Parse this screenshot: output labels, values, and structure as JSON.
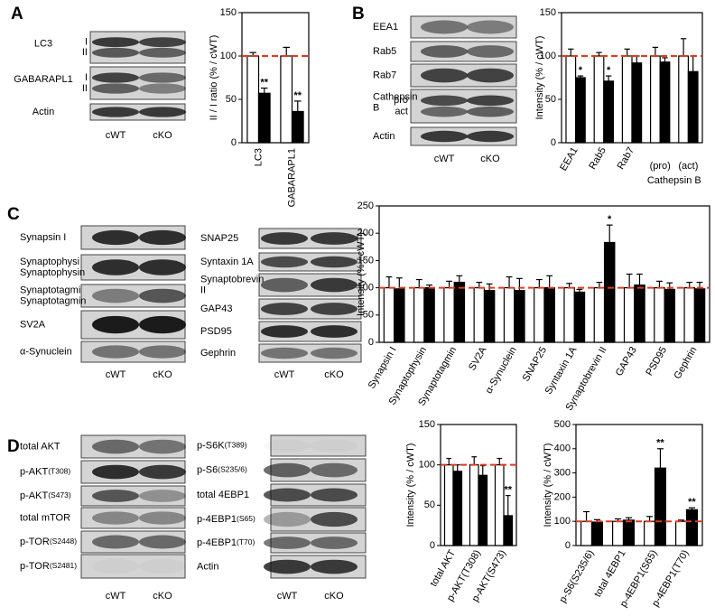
{
  "panel_labels": [
    "A",
    "B",
    "C",
    "D"
  ],
  "blots": [
    {
      "lanes": [
        "cWT",
        "cKO"
      ],
      "rows": [
        {
          "label": "LC3",
          "bands": [
            "I",
            "II"
          ]
        },
        {
          "label": "GABARAPL1",
          "bands": [
            "I",
            "II"
          ]
        },
        {
          "label": "Actin"
        }
      ]
    },
    {
      "lanes": [
        "cWT",
        "cKO"
      ],
      "rows": [
        {
          "label": "EEA1"
        },
        {
          "label": "Rab5"
        },
        {
          "label": "Rab7"
        },
        {
          "label": "Cathepsin B",
          "bands": [
            "pro",
            "act"
          ]
        },
        {
          "label": "Actin"
        }
      ]
    },
    {
      "lanes": [
        "cWT",
        "cKO"
      ],
      "rows": [
        {
          "label": "Synapsin I"
        },
        {
          "label": "Synaptophysin"
        },
        {
          "label": "Synaptotagmin"
        },
        {
          "label": "SV2A"
        },
        {
          "label": "α-Synuclein"
        }
      ]
    },
    {
      "lanes": [
        "cWT",
        "cKO"
      ],
      "rows": [
        {
          "label": "SNAP25"
        },
        {
          "label": "Syntaxin 1A"
        },
        {
          "label": "Synaptobrevin II"
        },
        {
          "label": "GAP43"
        },
        {
          "label": "PSD95"
        },
        {
          "label": "Gephrin"
        }
      ]
    },
    {
      "lanes": [
        "cWT",
        "cKO"
      ],
      "rows": [
        {
          "label": "total AKT"
        },
        {
          "label": "p-AKT",
          "site": "(T308)"
        },
        {
          "label": "p-AKT",
          "site": "(S473)"
        },
        {
          "label": "total mTOR"
        },
        {
          "label": "p-TOR",
          "site": "(S2448)"
        },
        {
          "label": "p-TOR",
          "site": "(S2481)"
        }
      ]
    },
    {
      "lanes": [
        "cWT",
        "cKO"
      ],
      "rows": [
        {
          "label": "p-S6K",
          "site": "(T389)"
        },
        {
          "label": "p-S6",
          "site": "(S235/6)"
        },
        {
          "label": "total 4EBP1"
        },
        {
          "label": "p-4EBP1",
          "site": "(S65)"
        },
        {
          "label": "p-4EBP1",
          "site": "(T70)"
        },
        {
          "label": "Actin"
        }
      ]
    }
  ],
  "chart_data": [
    {
      "type": "bar",
      "ylabel": "II / I ratio (% / cWT)",
      "categories": [
        "LC3",
        "GABARAPL1"
      ],
      "ylim": [
        0,
        150
      ],
      "yticks": [
        0,
        50,
        100,
        150
      ],
      "reference": 100,
      "reference_color": "#e03a1e",
      "series": [
        {
          "color": "#ffffff",
          "values": [
            100,
            100
          ],
          "errors": [
            4,
            10
          ],
          "significance": [
            null,
            null
          ]
        },
        {
          "color": "#000000",
          "values": [
            57,
            36
          ],
          "errors": [
            6,
            12
          ],
          "significance": [
            "**",
            "**"
          ]
        }
      ]
    },
    {
      "type": "bar",
      "ylabel": "Intensity (% / cWT)",
      "categories": [
        "EEA1",
        "Rab5",
        "Rab7",
        "(pro)",
        "(act)"
      ],
      "group_label": "Cathepsin B",
      "ylim": [
        0,
        150
      ],
      "yticks": [
        0,
        50,
        100,
        150
      ],
      "reference": 100,
      "reference_color": "#e03a1e",
      "series": [
        {
          "color": "#ffffff",
          "values": [
            100,
            100,
            100,
            100,
            100
          ],
          "errors": [
            8,
            4,
            8,
            10,
            20
          ],
          "significance": [
            null,
            null,
            null,
            null,
            null
          ]
        },
        {
          "color": "#000000",
          "values": [
            75,
            71,
            92,
            93,
            82
          ],
          "errors": [
            2,
            6,
            8,
            5,
            18
          ],
          "significance": [
            "*",
            "*",
            null,
            null,
            null
          ]
        }
      ]
    },
    {
      "type": "bar",
      "ylabel": "Intensity (% / cWT)",
      "categories": [
        "Synapsin I",
        "Synaptophysin",
        "Synaptotagmin",
        "SV2A",
        "α-Synuclein",
        "SNAP25",
        "Syntaxin 1A",
        "Synaptobrevin II",
        "GAP43",
        "PSD95",
        "Gephrin"
      ],
      "ylim": [
        0,
        250
      ],
      "yticks": [
        0,
        50,
        100,
        150,
        200,
        250
      ],
      "reference": 100,
      "reference_color": "#e03a1e",
      "series": [
        {
          "color": "#ffffff",
          "values": [
            100,
            100,
            100,
            100,
            100,
            100,
            100,
            100,
            100,
            100,
            100
          ],
          "errors": [
            20,
            15,
            12,
            10,
            20,
            15,
            8,
            10,
            25,
            12,
            10
          ],
          "significance": [
            null,
            null,
            null,
            null,
            null,
            null,
            null,
            null,
            null,
            null,
            null
          ]
        },
        {
          "color": "#000000",
          "values": [
            98,
            100,
            110,
            95,
            95,
            100,
            92,
            183,
            105,
            97,
            98
          ],
          "errors": [
            20,
            5,
            12,
            12,
            22,
            22,
            5,
            32,
            20,
            12,
            12
          ],
          "significance": [
            null,
            null,
            null,
            null,
            null,
            null,
            null,
            "*",
            null,
            null,
            null
          ]
        }
      ]
    },
    {
      "type": "bar",
      "ylabel": "Intensity (% / cWT)",
      "categories": [
        "total AKT",
        "p-AKT(T308)",
        "p-AKT(S473)"
      ],
      "ylim": [
        0,
        150
      ],
      "yticks": [
        0,
        50,
        100,
        150
      ],
      "reference": 100,
      "reference_color": "#e03a1e",
      "series": [
        {
          "color": "#ffffff",
          "values": [
            100,
            100,
            100
          ],
          "errors": [
            8,
            10,
            8
          ],
          "significance": [
            null,
            null,
            null
          ]
        },
        {
          "color": "#000000",
          "values": [
            92,
            87,
            37
          ],
          "errors": [
            8,
            12,
            25
          ],
          "significance": [
            null,
            null,
            "**"
          ]
        }
      ]
    },
    {
      "type": "bar",
      "ylabel": "Intensity (% / cWT)",
      "categories": [
        "p-S6(S235/6)",
        "total 4EBP1",
        "p-4EBP1(S65)",
        "p-4EBP1(T70)"
      ],
      "ylim": [
        0,
        500
      ],
      "yticks": [
        0,
        100,
        200,
        300,
        400,
        500
      ],
      "reference": 100,
      "reference_color": "#e03a1e",
      "series": [
        {
          "color": "#ffffff",
          "values": [
            100,
            100,
            100,
            100
          ],
          "errors": [
            40,
            10,
            20,
            5
          ],
          "significance": [
            null,
            null,
            null,
            null
          ]
        },
        {
          "color": "#000000",
          "values": [
            97,
            105,
            320,
            148
          ],
          "errors": [
            10,
            10,
            80,
            8
          ],
          "significance": [
            null,
            null,
            "**",
            "**"
          ]
        }
      ]
    }
  ]
}
